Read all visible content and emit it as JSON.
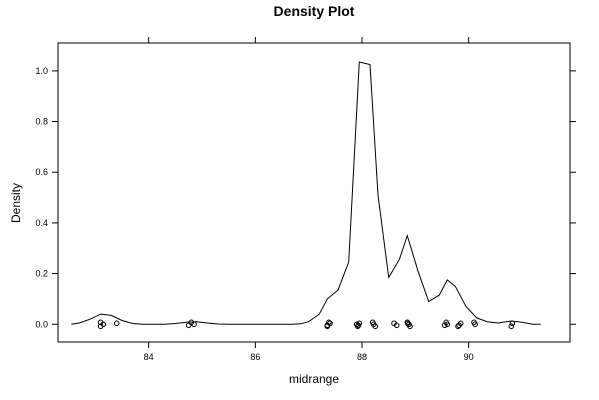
{
  "chart_data": {
    "type": "line",
    "title": "Density Plot",
    "xlabel": "midrange",
    "ylabel": "Density",
    "xlim": [
      82.3,
      91.9
    ],
    "ylim": [
      -0.07,
      1.11
    ],
    "x_ticks": [
      84,
      86,
      88,
      90
    ],
    "x_tick_labels": [
      "84",
      "86",
      "88",
      "90"
    ],
    "y_ticks": [
      0.0,
      0.2,
      0.4,
      0.6,
      0.8,
      1.0
    ],
    "y_tick_labels": [
      "0.0",
      "0.2",
      "0.4",
      "0.6",
      "0.8",
      "1.0"
    ],
    "grid": false,
    "series": [
      {
        "x": [
          82.55,
          82.7,
          82.9,
          83.1,
          83.3,
          83.5,
          83.7,
          83.9,
          84.1,
          84.3,
          84.5,
          84.7,
          84.9,
          85.1,
          85.3,
          85.5,
          85.7,
          85.9,
          86.1,
          86.3,
          86.5,
          86.7,
          86.85,
          87.0,
          87.2,
          87.35,
          87.55,
          87.75,
          87.95,
          88.15,
          88.3,
          88.5,
          88.7,
          88.85,
          89.05,
          89.25,
          89.45,
          89.6,
          89.75,
          89.95,
          90.15,
          90.35,
          90.55,
          90.8,
          91.0,
          91.2,
          91.35
        ],
        "values": [
          0.0,
          0.005,
          0.02,
          0.04,
          0.035,
          0.015,
          0.003,
          0.0,
          0.0,
          0.0,
          0.003,
          0.008,
          0.01,
          0.005,
          0.001,
          0.0,
          0.0,
          0.0,
          0.0,
          0.0,
          0.0,
          0.0,
          0.002,
          0.01,
          0.04,
          0.1,
          0.135,
          0.245,
          1.035,
          1.025,
          0.51,
          0.185,
          0.255,
          0.35,
          0.21,
          0.09,
          0.115,
          0.175,
          0.15,
          0.07,
          0.025,
          0.01,
          0.005,
          0.013,
          0.008,
          0.0,
          0.0
        ]
      }
    ],
    "rug_points": [
      83.1,
      83.15,
      83.1,
      83.4,
      84.75,
      84.8,
      84.85,
      87.35,
      87.4,
      87.35,
      87.38,
      87.9,
      87.92,
      87.95,
      87.93,
      88.2,
      88.22,
      88.25,
      88.6,
      88.65,
      88.85,
      88.88,
      88.9,
      88.86,
      89.55,
      89.58,
      89.6,
      89.8,
      89.85,
      89.82,
      90.1,
      90.12,
      90.8,
      90.82
    ]
  }
}
